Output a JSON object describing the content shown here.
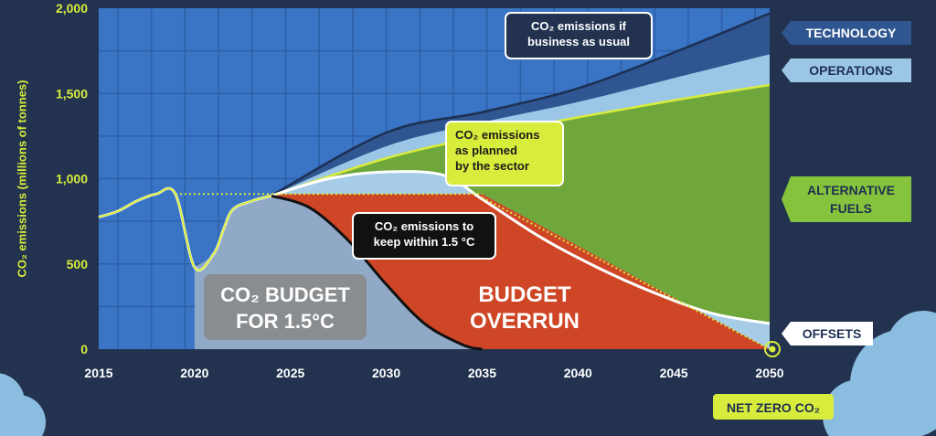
{
  "chart_data": {
    "type": "area",
    "ylabel": "CO₂ emissions (millions of tonnes)",
    "ylim": [
      0,
      2000
    ],
    "xlim": [
      2015,
      2050
    ],
    "x_ticks": [
      "2015",
      "2020",
      "2025",
      "2030",
      "2035",
      "2040",
      "2045",
      "2050"
    ],
    "y_ticks": [
      "0",
      "500",
      "1,000",
      "1,500",
      "2,000"
    ],
    "series": [
      {
        "name": "TECHNOLOGY",
        "x": [
          2024,
          2030,
          2035,
          2040,
          2045,
          2050
        ],
        "values": [
          900,
          1270,
          1390,
          1530,
          1740,
          1970
        ]
      },
      {
        "name": "OPERATIONS",
        "x": [
          2024,
          2030,
          2035,
          2040,
          2045,
          2050
        ],
        "values": [
          900,
          1190,
          1330,
          1450,
          1590,
          1730
        ]
      },
      {
        "name": "ALTERNATIVE FUELS",
        "x": [
          2024,
          2030,
          2035,
          2040,
          2045,
          2050
        ],
        "values": [
          900,
          1120,
          1250,
          1360,
          1460,
          1550
        ]
      },
      {
        "name": "OFFSETS",
        "x": [
          2024,
          2027,
          2030,
          2033,
          2035,
          2038,
          2041,
          2044,
          2047,
          2050
        ],
        "values": [
          900,
          1000,
          1040,
          1020,
          880,
          660,
          480,
          330,
          210,
          150
        ]
      }
    ],
    "historical": {
      "x": [
        2015,
        2016,
        2017,
        2018,
        2019,
        2020,
        2021,
        2021.5,
        2022,
        2023,
        2024
      ],
      "values": [
        775,
        810,
        870,
        910,
        910,
        480,
        560,
        700,
        820,
        870,
        900
      ]
    },
    "planned_level": {
      "x": [
        2019,
        2035
      ],
      "value": 910
    },
    "budget_curve": {
      "x": [
        2024,
        2026,
        2028,
        2030,
        2032,
        2034,
        2035
      ],
      "values": [
        900,
        830,
        640,
        380,
        150,
        25,
        0
      ]
    },
    "planned_to_zero": {
      "x": [
        2035,
        2050
      ],
      "values": [
        890,
        0
      ]
    }
  },
  "labels": {
    "bau_line1": "CO₂ emissions if",
    "bau_line2": "business as usual",
    "planned_line1": "CO₂ emissions",
    "planned_line2": "as planned",
    "planned_line3": "by the sector",
    "keep_line1": "CO₂ emissions to",
    "keep_line2": "keep within 1.5 °C",
    "budget_line1": "CO₂ BUDGET",
    "budget_line2": "FOR 1.5°C",
    "overrun_line1": "BUDGET",
    "overrun_line2": "OVERRUN",
    "technology": "TECHNOLOGY",
    "operations": "OPERATIONS",
    "alt_line1": "ALTERNATIVE",
    "alt_line2": "FUELS",
    "offsets": "OFFSETS",
    "net_zero": "NET ZERO CO₂"
  },
  "colors": {
    "background": "#22324f",
    "plot": "#3a74c4",
    "budget_area": "#8fa9c6",
    "overrun": "#cf4626",
    "alternative_fuels": "#70a73c",
    "operations": "#9cc6e6",
    "technology": "#2f5690",
    "offsets_band": "#a6cce8",
    "highlight": "#d8ec3c"
  }
}
